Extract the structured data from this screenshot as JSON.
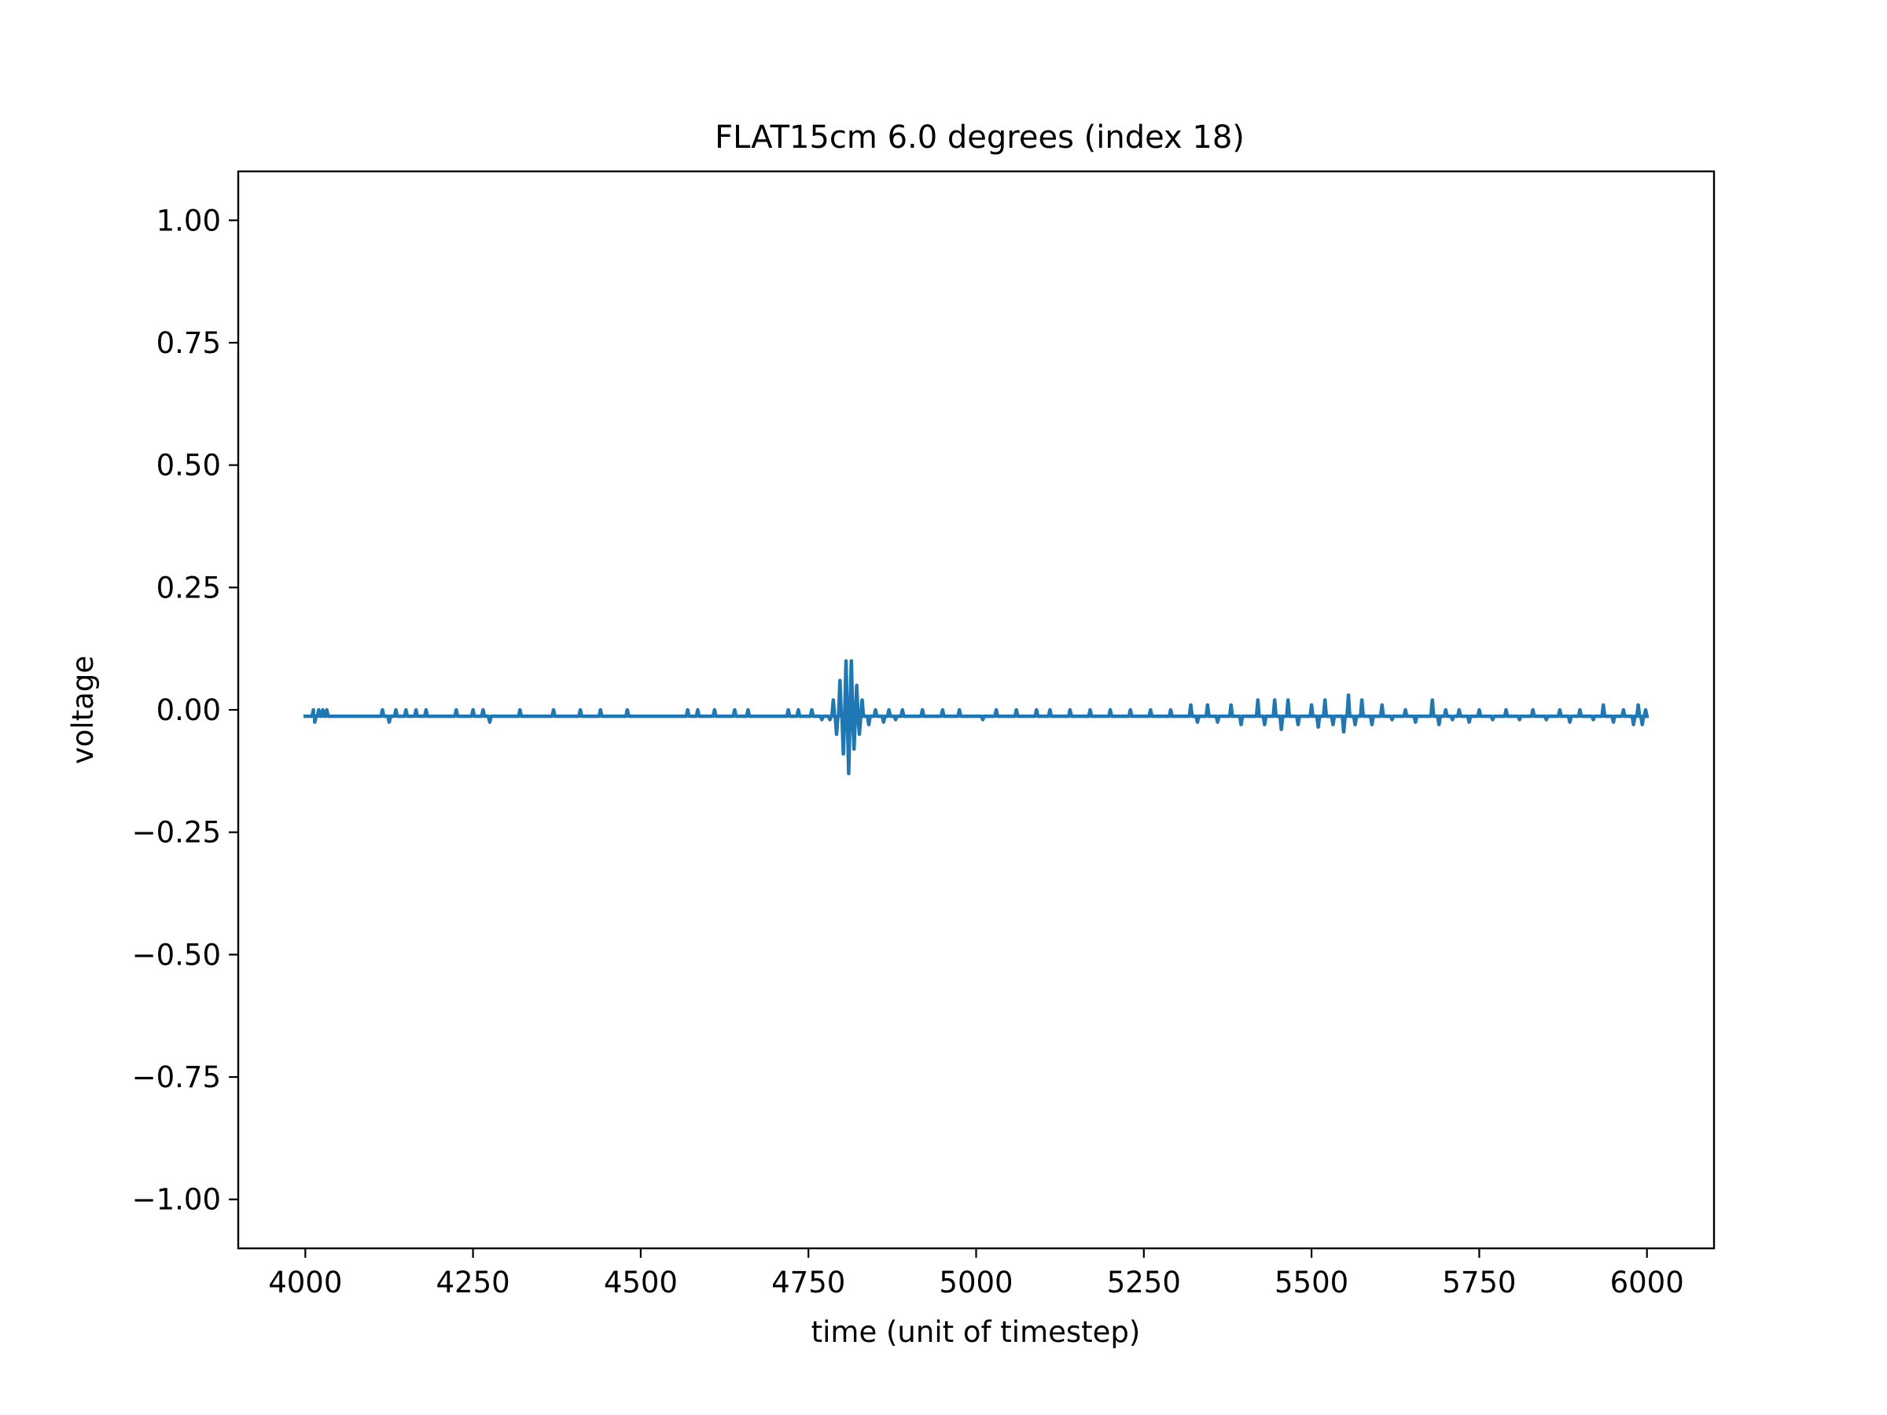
{
  "chart_data": {
    "type": "line",
    "title": "FLAT15cm 6.0 degrees (index 18)",
    "xlabel": "time (unit of timestep)",
    "ylabel": "voltage",
    "xlim": [
      3900,
      6100
    ],
    "ylim": [
      -1.1,
      1.1
    ],
    "xticks": [
      4000,
      4250,
      4500,
      4750,
      5000,
      5250,
      5500,
      5750,
      6000
    ],
    "xtick_labels": [
      "4000",
      "4250",
      "4500",
      "4750",
      "5000",
      "5250",
      "5500",
      "5750",
      "6000"
    ],
    "yticks": [
      1.0,
      0.75,
      0.5,
      0.25,
      0.0,
      -0.25,
      -0.5,
      -0.75,
      -1.0
    ],
    "ytick_labels": [
      "1.00",
      "0.75",
      "0.50",
      "0.25",
      "0.00",
      "−0.25",
      "−0.50",
      "−0.75",
      "−1.00"
    ],
    "grid": false,
    "series": [
      {
        "color": "#1f77b4",
        "baseline": -0.013,
        "x_range": [
          4000,
          6000
        ],
        "events": [
          [
            4012,
            0.0
          ],
          [
            4014,
            -0.025
          ],
          [
            4020,
            0.0
          ],
          [
            4026,
            0.0
          ],
          [
            4032,
            0.0
          ],
          [
            4115,
            0.0
          ],
          [
            4125,
            -0.025
          ],
          [
            4135,
            0.0
          ],
          [
            4150,
            0.0
          ],
          [
            4165,
            0.0
          ],
          [
            4180,
            0.0
          ],
          [
            4225,
            0.0
          ],
          [
            4250,
            0.0
          ],
          [
            4265,
            0.0
          ],
          [
            4275,
            -0.025
          ],
          [
            4320,
            0.0
          ],
          [
            4370,
            0.0
          ],
          [
            4410,
            0.0
          ],
          [
            4440,
            0.0
          ],
          [
            4480,
            0.0
          ],
          [
            4570,
            0.0
          ],
          [
            4585,
            0.0
          ],
          [
            4610,
            0.0
          ],
          [
            4640,
            0.0
          ],
          [
            4660,
            0.0
          ],
          [
            4720,
            0.0
          ],
          [
            4735,
            0.0
          ],
          [
            4755,
            0.0
          ],
          [
            4770,
            -0.02
          ],
          [
            4782,
            -0.02
          ],
          [
            4787,
            0.02
          ],
          [
            4792,
            -0.05
          ],
          [
            4797,
            0.06
          ],
          [
            4802,
            -0.09
          ],
          [
            4806,
            0.1
          ],
          [
            4810,
            -0.13
          ],
          [
            4814,
            0.1
          ],
          [
            4818,
            -0.08
          ],
          [
            4822,
            0.05
          ],
          [
            4826,
            -0.05
          ],
          [
            4830,
            0.02
          ],
          [
            4840,
            -0.03
          ],
          [
            4850,
            0.0
          ],
          [
            4862,
            -0.025
          ],
          [
            4870,
            0.0
          ],
          [
            4880,
            -0.02
          ],
          [
            4890,
            0.0
          ],
          [
            4920,
            0.0
          ],
          [
            4950,
            0.0
          ],
          [
            4975,
            0.0
          ],
          [
            5010,
            -0.02
          ],
          [
            5030,
            0.0
          ],
          [
            5060,
            0.0
          ],
          [
            5090,
            0.0
          ],
          [
            5110,
            0.0
          ],
          [
            5140,
            0.0
          ],
          [
            5170,
            0.0
          ],
          [
            5200,
            0.0
          ],
          [
            5230,
            0.0
          ],
          [
            5260,
            0.0
          ],
          [
            5290,
            0.0
          ],
          [
            5320,
            0.01
          ],
          [
            5330,
            -0.025
          ],
          [
            5345,
            0.01
          ],
          [
            5360,
            -0.025
          ],
          [
            5380,
            0.01
          ],
          [
            5395,
            -0.03
          ],
          [
            5420,
            0.02
          ],
          [
            5430,
            -0.03
          ],
          [
            5445,
            0.02
          ],
          [
            5455,
            -0.04
          ],
          [
            5465,
            0.02
          ],
          [
            5480,
            -0.03
          ],
          [
            5500,
            0.01
          ],
          [
            5510,
            -0.035
          ],
          [
            5520,
            0.02
          ],
          [
            5532,
            -0.03
          ],
          [
            5548,
            -0.045
          ],
          [
            5555,
            0.03
          ],
          [
            5565,
            -0.03
          ],
          [
            5575,
            0.02
          ],
          [
            5590,
            -0.03
          ],
          [
            5605,
            0.01
          ],
          [
            5620,
            -0.02
          ],
          [
            5640,
            0.0
          ],
          [
            5655,
            -0.025
          ],
          [
            5680,
            0.02
          ],
          [
            5690,
            -0.03
          ],
          [
            5700,
            0.0
          ],
          [
            5710,
            -0.02
          ],
          [
            5720,
            0.0
          ],
          [
            5735,
            -0.025
          ],
          [
            5750,
            0.0
          ],
          [
            5770,
            -0.02
          ],
          [
            5790,
            0.0
          ],
          [
            5810,
            -0.02
          ],
          [
            5830,
            0.0
          ],
          [
            5850,
            -0.02
          ],
          [
            5870,
            0.0
          ],
          [
            5885,
            -0.025
          ],
          [
            5900,
            0.0
          ],
          [
            5920,
            -0.02
          ],
          [
            5935,
            0.01
          ],
          [
            5950,
            -0.025
          ],
          [
            5965,
            0.0
          ],
          [
            5980,
            -0.03
          ],
          [
            5987,
            0.01
          ],
          [
            5993,
            -0.03
          ],
          [
            5998,
            0.0
          ]
        ]
      }
    ]
  }
}
